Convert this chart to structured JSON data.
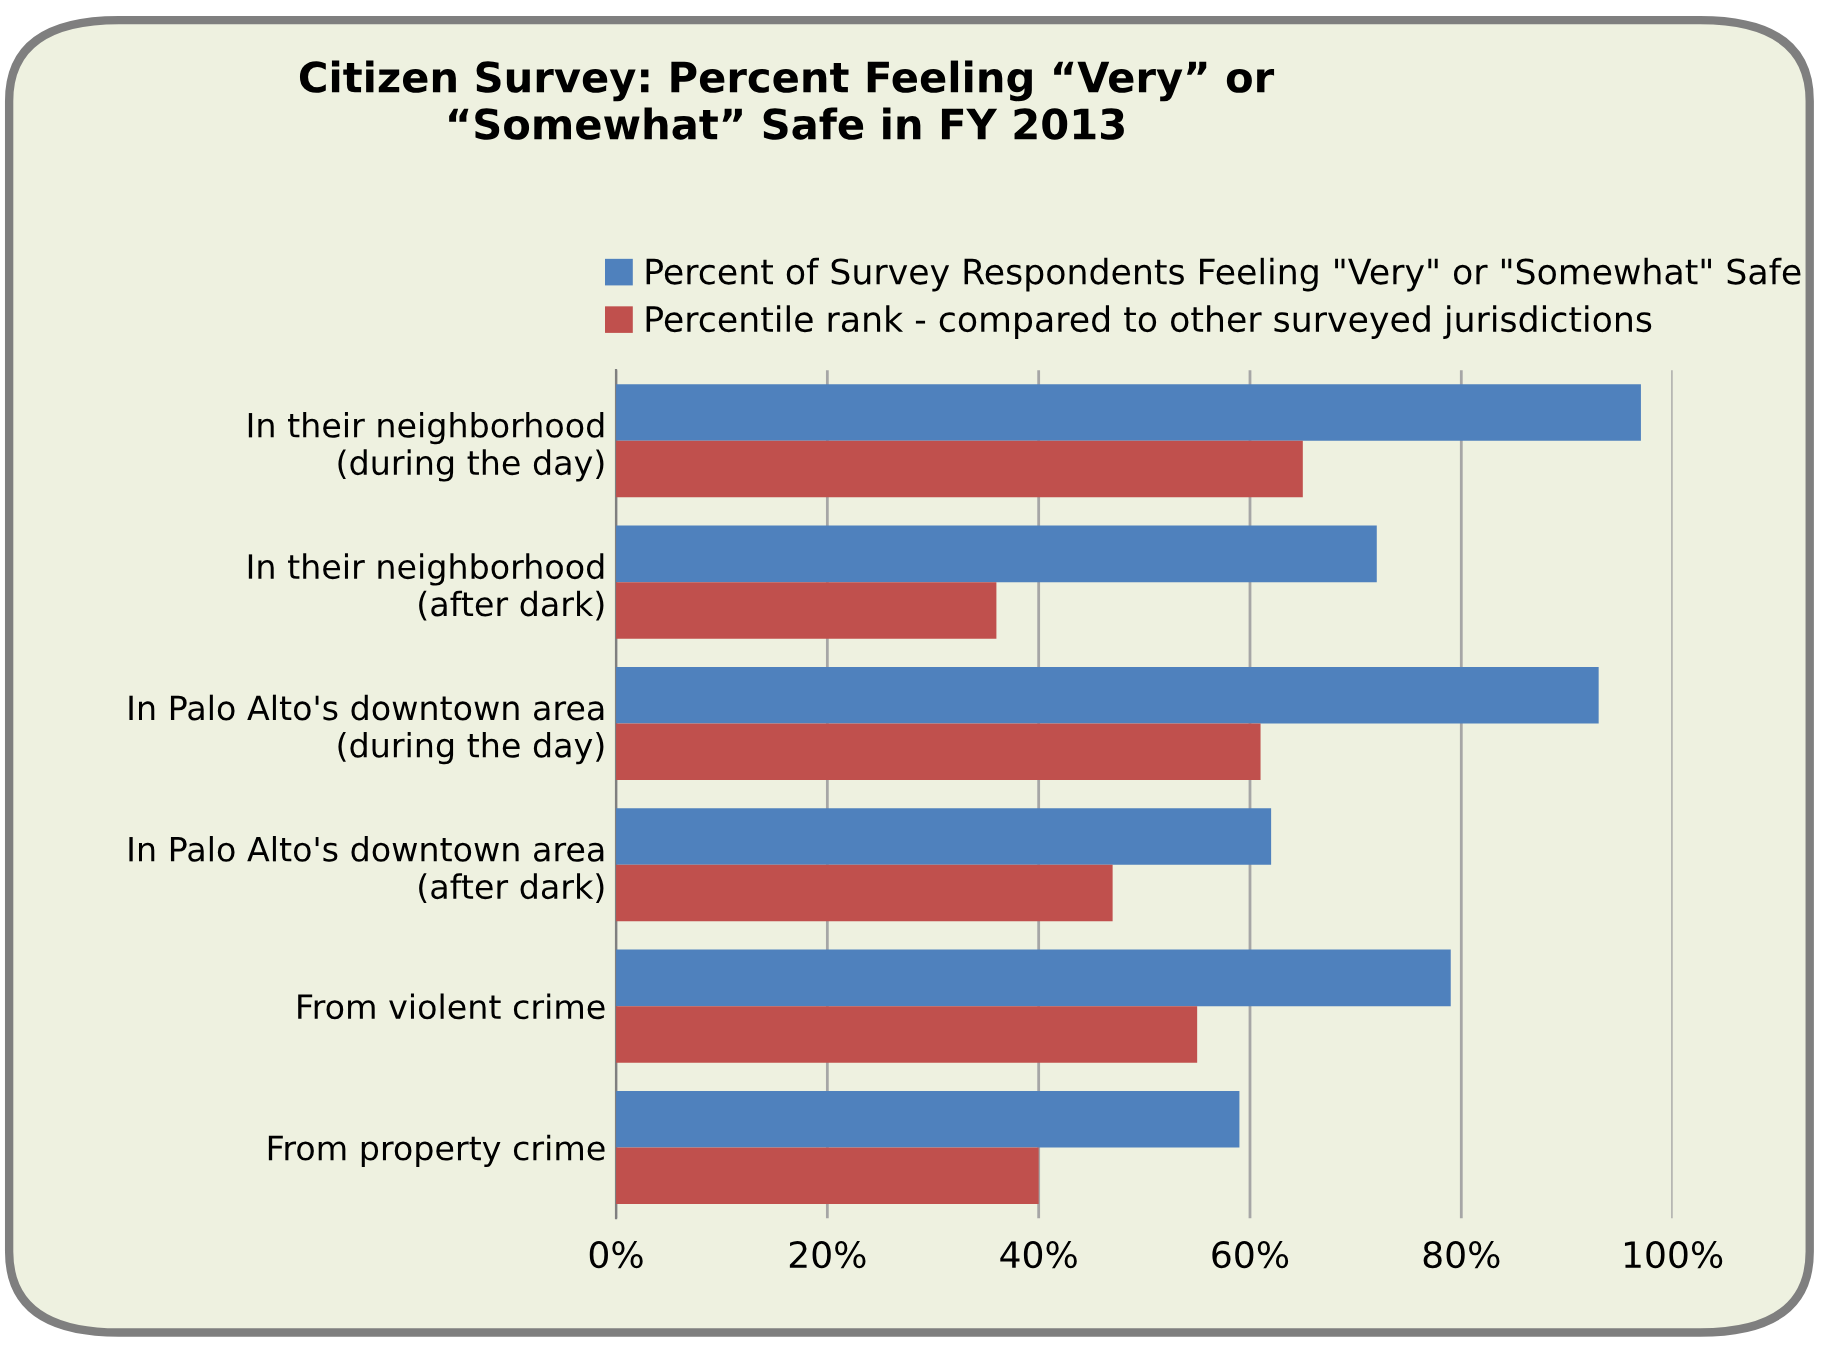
{
  "chart_data": {
    "type": "bar",
    "orientation": "horizontal",
    "title": "Citizen Survey: Percent Feeling “Very” or\n“Somewhat” Safe in FY 2013",
    "categories": [
      "In their neighborhood\n(during the day)",
      "In their neighborhood\n(after dark)",
      "In Palo Alto's downtown area\n(during the day)",
      "In Palo Alto's downtown area\n(after dark)",
      "From violent crime",
      "From property crime"
    ],
    "series": [
      {
        "name": "Percent of Survey Respondents Feeling \"Very\" or \"Somewhat\" Safe",
        "color": "#4f81bd",
        "values": [
          97,
          72,
          93,
          62,
          79,
          59
        ]
      },
      {
        "name": "Percentile rank - compared to other surveyed jurisdictions",
        "color": "#c0504d",
        "values": [
          65,
          36,
          61,
          47,
          55,
          40
        ]
      }
    ],
    "xlim": [
      0,
      100
    ],
    "xticks": [
      {
        "value": 0,
        "label": "0%"
      },
      {
        "value": 20,
        "label": "20%"
      },
      {
        "value": 40,
        "label": "40%"
      },
      {
        "value": 60,
        "label": "60%"
      },
      {
        "value": 80,
        "label": "80%"
      },
      {
        "value": 100,
        "label": "100%"
      }
    ],
    "grid": "x",
    "legend": "top"
  }
}
